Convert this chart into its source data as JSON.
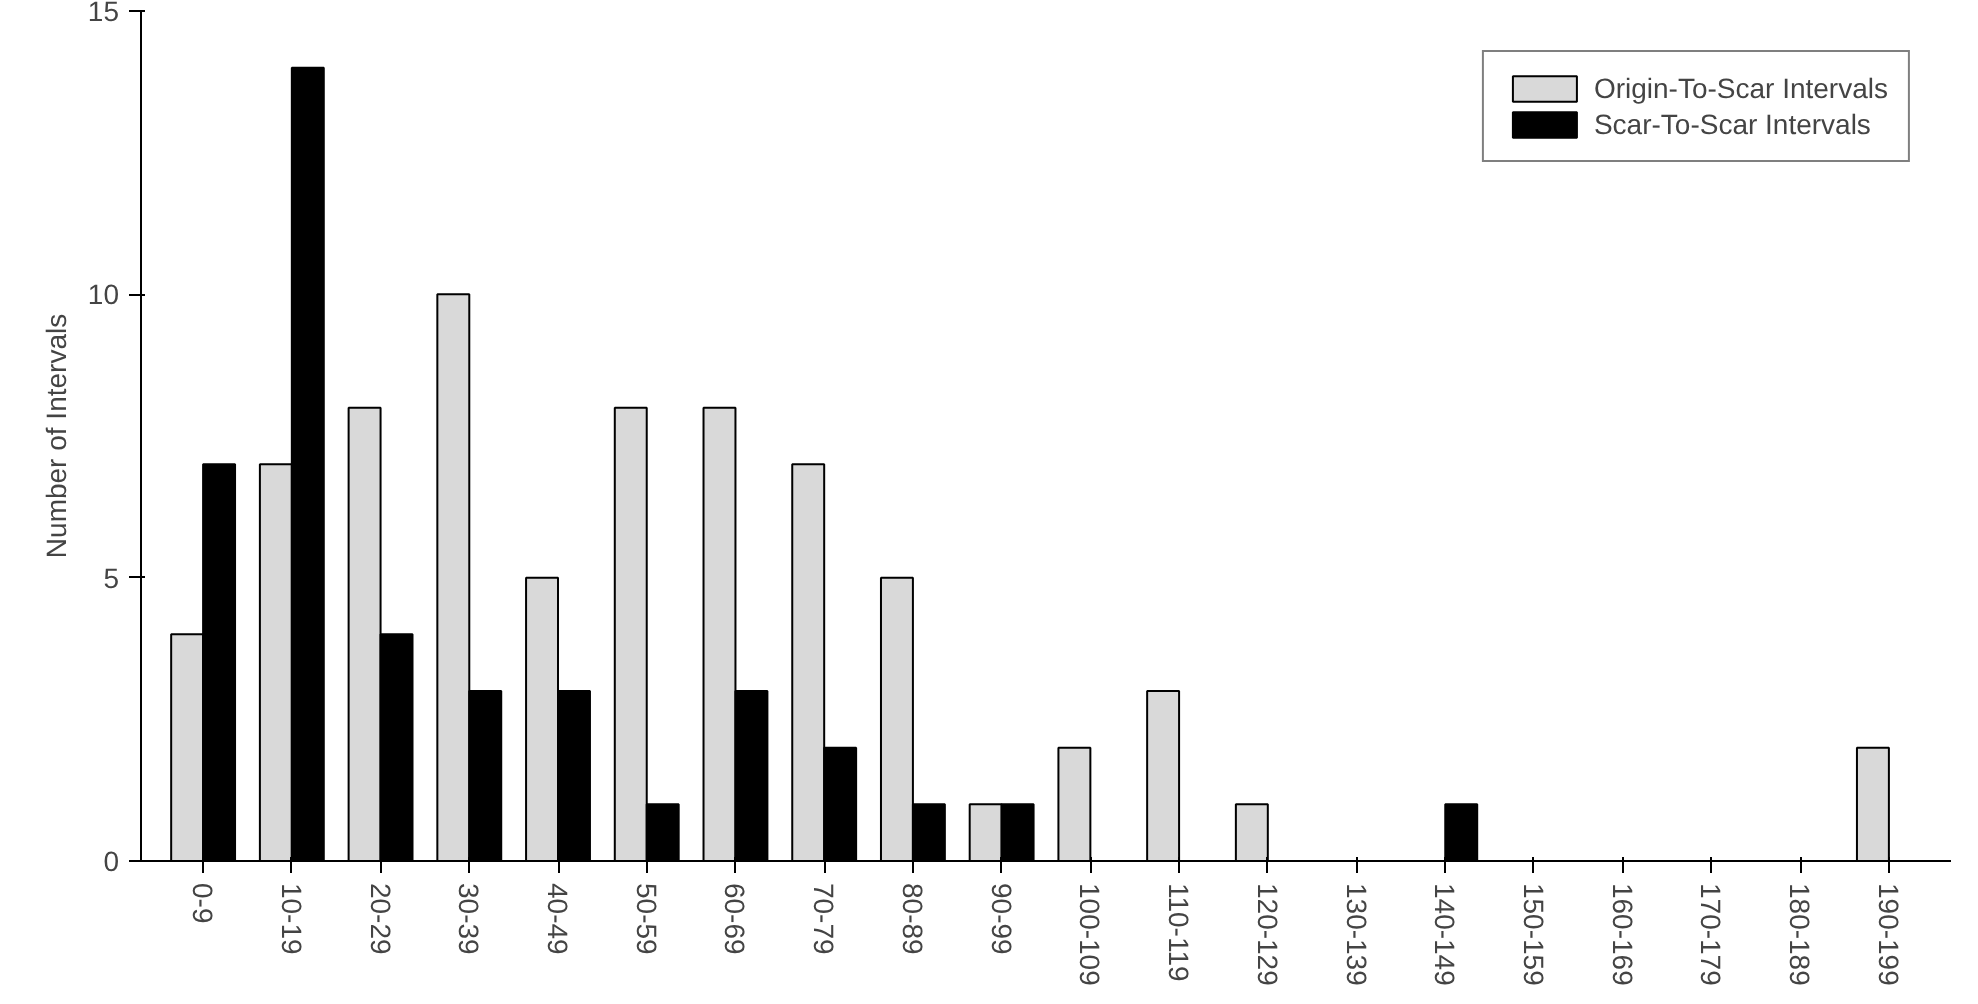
{
  "chart_data": {
    "type": "bar",
    "ylabel": "Number of Intervals",
    "categories": [
      "0-9",
      "10-19",
      "20-29",
      "30-39",
      "40-49",
      "50-59",
      "60-69",
      "70-79",
      "80-89",
      "90-99",
      "100-109",
      "110-119",
      "120-129",
      "130-139",
      "140-149",
      "150-159",
      "160-169",
      "170-179",
      "180-189",
      "190-199"
    ],
    "series": [
      {
        "name": "Origin-To-Scar Intervals",
        "color": "#d9d9d9",
        "values": [
          4,
          7,
          8,
          10,
          5,
          8,
          8,
          7,
          5,
          1,
          2,
          3,
          1,
          0,
          0,
          0,
          0,
          0,
          0,
          2
        ]
      },
      {
        "name": "Scar-To-Scar Intervals",
        "color": "#000000",
        "values": [
          7,
          14,
          4,
          3,
          3,
          1,
          3,
          2,
          1,
          1,
          0,
          0,
          0,
          0,
          1,
          0,
          0,
          0,
          0,
          0
        ]
      }
    ],
    "ylim": [
      0,
      15
    ],
    "yticks": [
      0,
      5,
      10,
      15
    ],
    "grid": false,
    "legend": "top right"
  }
}
